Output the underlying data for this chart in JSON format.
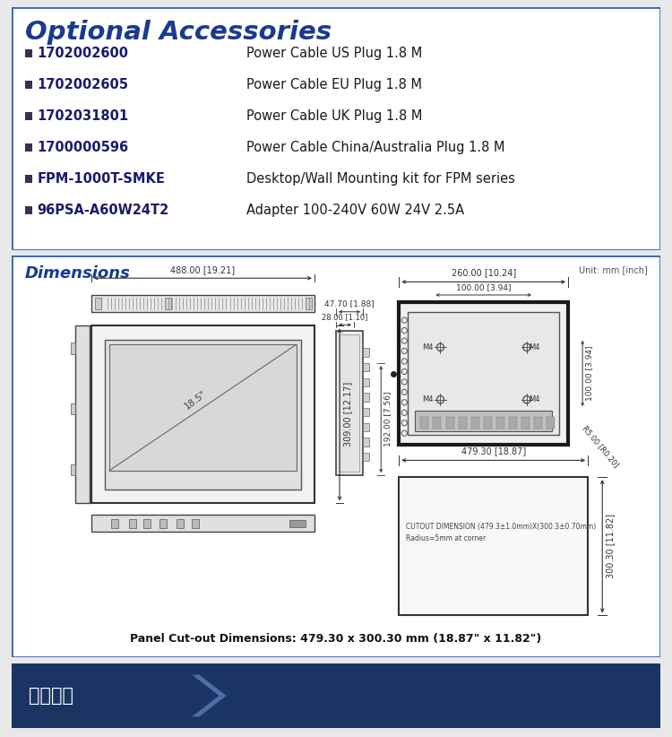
{
  "page_bg": "#e8e8e8",
  "section1_bg": "#ffffff",
  "section2_bg": "#ffffff",
  "section3_bg": "#1a3a6b",
  "border_color": "#3366bb",
  "title1": "Optional Accessories",
  "title1_color": "#1a3a8f",
  "title2": "Dimensions",
  "title2_color": "#1a3a8f",
  "unit_text": "Unit: mm [inch]",
  "accessories": [
    {
      "code": "1702002600",
      "desc": "Power Cable US Plug 1.8 M"
    },
    {
      "code": "1702002605",
      "desc": "Power Cable EU Plug 1.8 M"
    },
    {
      "code": "1702031801",
      "desc": "Power Cable UK Plug 1.8 M"
    },
    {
      "code": "1700000596",
      "desc": "Power Cable China/Australia Plug 1.8 M"
    },
    {
      "code": "FPM-1000T-SMKE",
      "desc": "Desktop/Wall Mounting kit for FPM series"
    },
    {
      "code": "96PSA-A60W24T2",
      "desc": "Adapter 100-240V 60W 24V 2.5A"
    }
  ],
  "cutout_text": "Panel Cut-out Dimensions: 479.30 x 300.30 mm (18.87\" x 11.82\")",
  "section3_title": "产品配置",
  "section3_title_color": "#ffffff"
}
